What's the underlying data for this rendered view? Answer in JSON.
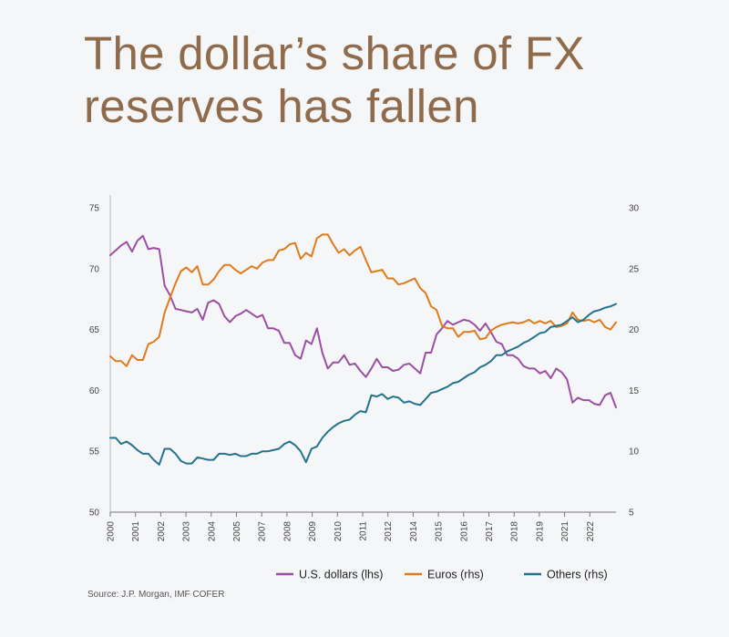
{
  "title": "The dollar’s share of FX reserves has fallen",
  "source": "Source: J.P. Morgan, IMF COFER",
  "chart_data": {
    "type": "line",
    "title": "The dollar’s share of FX reserves has fallen",
    "x_tick_labels": [
      "2000",
      "2001",
      "2002",
      "2003",
      "2004",
      "2005",
      "2007",
      "2008",
      "2009",
      "2010",
      "2011",
      "2012",
      "2014",
      "2015",
      "2016",
      "2017",
      "2018",
      "2019",
      "2021",
      "2022"
    ],
    "ylim_left": [
      50,
      75
    ],
    "yticks_left": [
      50,
      55,
      60,
      65,
      70,
      75
    ],
    "ylim_right": [
      5,
      30
    ],
    "yticks_right": [
      5,
      10,
      15,
      20,
      25,
      30
    ],
    "legend_position": "bottom-right",
    "series": [
      {
        "name": "U.S. dollars (lhs)",
        "axis": "left",
        "color": "#9b4fa3",
        "values": [
          71.1,
          71.5,
          71.9,
          72.2,
          71.4,
          72.3,
          72.7,
          71.6,
          71.7,
          71.6,
          68.6,
          67.8,
          66.7,
          66.6,
          66.5,
          66.4,
          66.7,
          65.8,
          67.2,
          67.4,
          67.1,
          66.1,
          65.6,
          66.1,
          66.3,
          66.6,
          66.3,
          66.0,
          66.2,
          65.1,
          65.1,
          64.9,
          63.9,
          63.9,
          62.9,
          62.6,
          64.1,
          63.8,
          65.1,
          63.1,
          61.8,
          62.3,
          62.3,
          62.9,
          62.1,
          62.2,
          61.6,
          61.1,
          61.8,
          62.6,
          61.9,
          61.9,
          61.6,
          61.7,
          62.1,
          62.2,
          61.8,
          61.4,
          63.1,
          63.1,
          64.6,
          65.1,
          65.7,
          65.4,
          65.6,
          65.8,
          65.7,
          65.4,
          64.9,
          65.5,
          64.8,
          64.0,
          63.8,
          62.9,
          62.9,
          62.6,
          62.0,
          61.8,
          61.8,
          61.4,
          61.6,
          61.0,
          61.8,
          61.5,
          60.9,
          59.0,
          59.4,
          59.2,
          59.2,
          58.9,
          58.8,
          59.6,
          59.8,
          58.6
        ]
      },
      {
        "name": "Euros (rhs)",
        "axis": "right",
        "color": "#e07a1a",
        "values": [
          17.8,
          17.4,
          17.4,
          17.0,
          17.9,
          17.5,
          17.5,
          18.8,
          19.0,
          19.4,
          21.4,
          22.6,
          23.8,
          24.8,
          25.1,
          24.7,
          25.2,
          23.7,
          23.7,
          24.1,
          24.8,
          25.3,
          25.3,
          24.9,
          24.6,
          24.9,
          25.2,
          25.0,
          25.5,
          25.7,
          25.7,
          26.5,
          26.6,
          27.0,
          27.1,
          25.8,
          26.3,
          26.0,
          27.5,
          27.8,
          27.8,
          27.0,
          26.3,
          26.6,
          26.1,
          26.5,
          26.8,
          25.7,
          24.7,
          24.8,
          24.9,
          24.2,
          24.2,
          23.7,
          23.8,
          24.0,
          24.2,
          23.4,
          23.0,
          21.9,
          21.6,
          20.3,
          20.1,
          20.1,
          19.4,
          19.8,
          19.8,
          19.9,
          19.2,
          19.3,
          19.9,
          20.2,
          20.4,
          20.5,
          20.6,
          20.5,
          20.6,
          20.8,
          20.5,
          20.7,
          20.5,
          20.7,
          20.2,
          20.3,
          20.5,
          21.4,
          20.8,
          20.7,
          20.8,
          20.6,
          20.8,
          20.2,
          20.0,
          20.6
        ]
      },
      {
        "name": "Others (rhs)",
        "axis": "right",
        "color": "#23738c",
        "values": [
          11.1,
          11.1,
          10.6,
          10.8,
          10.5,
          10.1,
          9.8,
          9.8,
          9.3,
          8.9,
          10.2,
          10.2,
          9.8,
          9.2,
          9.0,
          9.0,
          9.5,
          9.4,
          9.3,
          9.3,
          9.8,
          9.8,
          9.7,
          9.8,
          9.6,
          9.6,
          9.8,
          9.8,
          10.0,
          10.0,
          10.1,
          10.2,
          10.6,
          10.8,
          10.5,
          10.0,
          9.1,
          10.2,
          10.4,
          11.1,
          11.6,
          12.0,
          12.3,
          12.5,
          12.6,
          13.0,
          13.3,
          13.2,
          14.6,
          14.5,
          14.7,
          14.3,
          14.5,
          14.4,
          14.0,
          14.1,
          13.9,
          13.8,
          14.3,
          14.8,
          14.9,
          15.1,
          15.3,
          15.6,
          15.7,
          16.0,
          16.3,
          16.5,
          16.9,
          17.1,
          17.4,
          17.9,
          17.9,
          18.2,
          18.4,
          18.6,
          18.9,
          19.1,
          19.4,
          19.7,
          19.8,
          20.2,
          20.3,
          20.4,
          20.7,
          21.0,
          20.6,
          20.8,
          21.2,
          21.5,
          21.6,
          21.8,
          21.9,
          22.1
        ]
      }
    ]
  }
}
